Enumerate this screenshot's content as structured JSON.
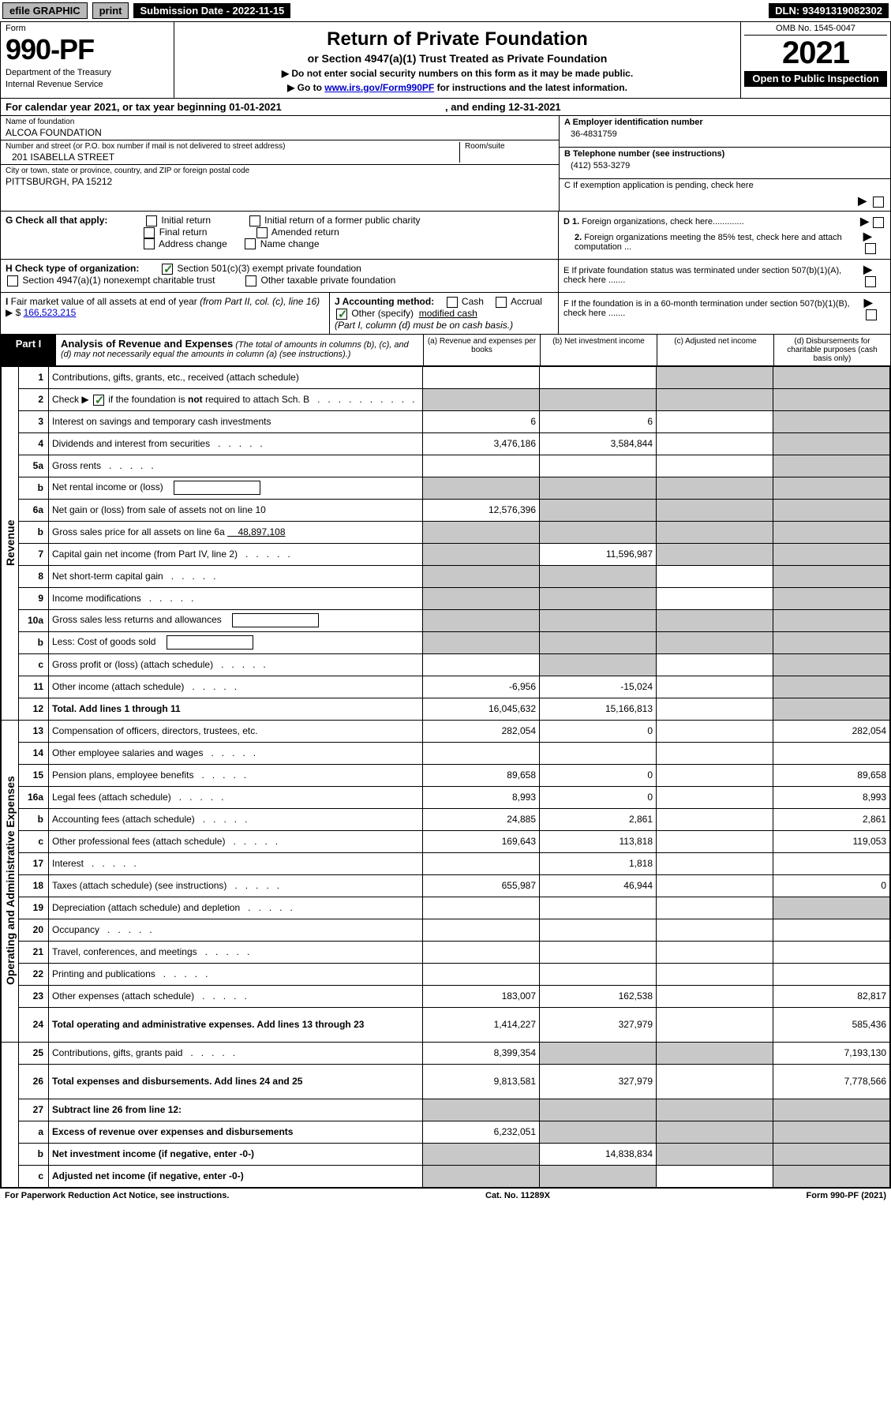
{
  "top_bar": {
    "efile": "efile",
    "graphic": "GRAPHIC",
    "print": "print",
    "sub_date_label": "Submission Date - 2022-11-15",
    "dln": "DLN: 93491319082302"
  },
  "header": {
    "form_label": "Form",
    "form_number": "990-PF",
    "dept": "Department of the Treasury",
    "irs": "Internal Revenue Service",
    "title": "Return of Private Foundation",
    "subtitle": "or Section 4947(a)(1) Trust Treated as Private Foundation",
    "bullet1": "▶ Do not enter social security numbers on this form as it may be made public.",
    "bullet2_pre": "▶ Go to ",
    "bullet2_link": "www.irs.gov/Form990PF",
    "bullet2_post": " for instructions and the latest information.",
    "omb": "OMB No. 1545-0047",
    "year": "2021",
    "open_pub": "Open to Public Inspection"
  },
  "calendar_line": {
    "text_pre": "For calendar year 2021, or tax year beginning ",
    "begin": "01-01-2021",
    "text_mid": " , and ending ",
    "end": "12-31-2021"
  },
  "entity": {
    "name_label": "Name of foundation",
    "name": "ALCOA FOUNDATION",
    "addr_label": "Number and street (or P.O. box number if mail is not delivered to street address)",
    "addr": "201 ISABELLA STREET",
    "room_label": "Room/suite",
    "room": "",
    "city_label": "City or town, state or province, country, and ZIP or foreign postal code",
    "city": "PITTSBURGH, PA  15212",
    "a_label": "A Employer identification number",
    "a_val": "36-4831759",
    "b_label": "B Telephone number (see instructions)",
    "b_val": "(412) 553-3279",
    "c_label": "C If exemption application is pending, check here"
  },
  "checks": {
    "g_label": "G Check all that apply:",
    "g_opts": {
      "initial": "Initial return",
      "initial_former": "Initial return of a former public charity",
      "final": "Final return",
      "amended": "Amended return",
      "addr_change": "Address change",
      "name_change": "Name change"
    },
    "h_label": "H Check type of organization:",
    "h_501c3": "Section 501(c)(3) exempt private foundation",
    "h_4947": "Section 4947(a)(1) nonexempt charitable trust",
    "h_other": "Other taxable private foundation",
    "i_label": "I Fair market value of all assets at end of year (from Part II, col. (c), line 16) ▶ $",
    "i_val": "166,523,215",
    "j_label": "J Accounting method:",
    "j_cash": "Cash",
    "j_accrual": "Accrual",
    "j_other_pre": "Other (specify)",
    "j_other_val": "modified cash",
    "j_note": "(Part I, column (d) must be on cash basis.)",
    "d1": "D 1. Foreign organizations, check here.............",
    "d2": "2. Foreign organizations meeting the 85% test, check here and attach computation ...",
    "e": "E  If private foundation status was terminated under section 507(b)(1)(A), check here .......",
    "f": "F  If the foundation is in a 60-month termination under section 507(b)(1)(B), check here ......."
  },
  "part1": {
    "tab": "Part I",
    "title": "Analysis of Revenue and Expenses",
    "title_note": " (The total of amounts in columns (b), (c), and (d) may not necessarily equal the amounts in column (a) (see instructions).)",
    "col_a": "(a) Revenue and expenses per books",
    "col_b": "(b) Net investment income",
    "col_c": "(c) Adjusted net income",
    "col_d": "(d) Disbursements for charitable purposes (cash basis only)"
  },
  "side_labels": {
    "revenue": "Revenue",
    "operating": "Operating and Administrative Expenses"
  },
  "rows": [
    {
      "n": "1",
      "d": "Contributions, gifts, grants, etc., received (attach schedule)",
      "a": "",
      "b": "",
      "c": "g",
      "dd": "g"
    },
    {
      "n": "2",
      "d": "Check ▶ ☑ if the foundation is not required to attach Sch. B",
      "a": "g",
      "b": "g",
      "c": "g",
      "dd": "g",
      "desc_html": true
    },
    {
      "n": "3",
      "d": "Interest on savings and temporary cash investments",
      "a": "6",
      "b": "6",
      "c": "",
      "dd": "g"
    },
    {
      "n": "4",
      "d": "Dividends and interest from securities",
      "a": "3,476,186",
      "b": "3,584,844",
      "c": "",
      "dd": "g"
    },
    {
      "n": "5a",
      "d": "Gross rents",
      "a": "",
      "b": "",
      "c": "",
      "dd": "g"
    },
    {
      "n": "b",
      "d": "Net rental income or (loss)",
      "a": "g",
      "b": "g",
      "c": "g",
      "dd": "g",
      "inline_box": true
    },
    {
      "n": "6a",
      "d": "Net gain or (loss) from sale of assets not on line 10",
      "a": "12,576,396",
      "b": "g",
      "c": "g",
      "dd": "g"
    },
    {
      "n": "b",
      "d": "Gross sales price for all assets on line 6a",
      "a": "g",
      "b": "g",
      "c": "g",
      "dd": "g",
      "inline_val": "48,897,108"
    },
    {
      "n": "7",
      "d": "Capital gain net income (from Part IV, line 2)",
      "a": "g",
      "b": "11,596,987",
      "c": "g",
      "dd": "g"
    },
    {
      "n": "8",
      "d": "Net short-term capital gain",
      "a": "g",
      "b": "g",
      "c": "",
      "dd": "g"
    },
    {
      "n": "9",
      "d": "Income modifications",
      "a": "g",
      "b": "g",
      "c": "",
      "dd": "g"
    },
    {
      "n": "10a",
      "d": "Gross sales less returns and allowances",
      "a": "g",
      "b": "g",
      "c": "g",
      "dd": "g",
      "inline_box": true
    },
    {
      "n": "b",
      "d": "Less: Cost of goods sold",
      "a": "g",
      "b": "g",
      "c": "g",
      "dd": "g",
      "inline_box": true
    },
    {
      "n": "c",
      "d": "Gross profit or (loss) (attach schedule)",
      "a": "",
      "b": "g",
      "c": "",
      "dd": "g"
    },
    {
      "n": "11",
      "d": "Other income (attach schedule)",
      "a": "-6,956",
      "b": "-15,024",
      "c": "",
      "dd": "g"
    },
    {
      "n": "12",
      "d": "Total. Add lines 1 through 11",
      "a": "16,045,632",
      "b": "15,166,813",
      "c": "",
      "dd": "g",
      "bold": true
    },
    {
      "n": "13",
      "d": "Compensation of officers, directors, trustees, etc.",
      "a": "282,054",
      "b": "0",
      "c": "",
      "dd": "282,054"
    },
    {
      "n": "14",
      "d": "Other employee salaries and wages",
      "a": "",
      "b": "",
      "c": "",
      "dd": ""
    },
    {
      "n": "15",
      "d": "Pension plans, employee benefits",
      "a": "89,658",
      "b": "0",
      "c": "",
      "dd": "89,658"
    },
    {
      "n": "16a",
      "d": "Legal fees (attach schedule)",
      "a": "8,993",
      "b": "0",
      "c": "",
      "dd": "8,993"
    },
    {
      "n": "b",
      "d": "Accounting fees (attach schedule)",
      "a": "24,885",
      "b": "2,861",
      "c": "",
      "dd": "2,861"
    },
    {
      "n": "c",
      "d": "Other professional fees (attach schedule)",
      "a": "169,643",
      "b": "113,818",
      "c": "",
      "dd": "119,053"
    },
    {
      "n": "17",
      "d": "Interest",
      "a": "",
      "b": "1,818",
      "c": "",
      "dd": ""
    },
    {
      "n": "18",
      "d": "Taxes (attach schedule) (see instructions)",
      "a": "655,987",
      "b": "46,944",
      "c": "",
      "dd": "0"
    },
    {
      "n": "19",
      "d": "Depreciation (attach schedule) and depletion",
      "a": "",
      "b": "",
      "c": "",
      "dd": "g"
    },
    {
      "n": "20",
      "d": "Occupancy",
      "a": "",
      "b": "",
      "c": "",
      "dd": ""
    },
    {
      "n": "21",
      "d": "Travel, conferences, and meetings",
      "a": "",
      "b": "",
      "c": "",
      "dd": ""
    },
    {
      "n": "22",
      "d": "Printing and publications",
      "a": "",
      "b": "",
      "c": "",
      "dd": ""
    },
    {
      "n": "23",
      "d": "Other expenses (attach schedule)",
      "a": "183,007",
      "b": "162,538",
      "c": "",
      "dd": "82,817"
    },
    {
      "n": "24",
      "d": "Total operating and administrative expenses. Add lines 13 through 23",
      "a": "1,414,227",
      "b": "327,979",
      "c": "",
      "dd": "585,436",
      "bold": true,
      "tall": true
    },
    {
      "n": "25",
      "d": "Contributions, gifts, grants paid",
      "a": "8,399,354",
      "b": "g",
      "c": "g",
      "dd": "7,193,130"
    },
    {
      "n": "26",
      "d": "Total expenses and disbursements. Add lines 24 and 25",
      "a": "9,813,581",
      "b": "327,979",
      "c": "",
      "dd": "7,778,566",
      "bold": true,
      "tall": true
    },
    {
      "n": "27",
      "d": "Subtract line 26 from line 12:",
      "a": "g",
      "b": "g",
      "c": "g",
      "dd": "g",
      "bold": true
    },
    {
      "n": "a",
      "d": "Excess of revenue over expenses and disbursements",
      "a": "6,232,051",
      "b": "g",
      "c": "g",
      "dd": "g",
      "bold": true
    },
    {
      "n": "b",
      "d": "Net investment income (if negative, enter -0-)",
      "a": "g",
      "b": "14,838,834",
      "c": "g",
      "dd": "g",
      "bold": true
    },
    {
      "n": "c",
      "d": "Adjusted net income (if negative, enter -0-)",
      "a": "g",
      "b": "g",
      "c": "",
      "dd": "g",
      "bold": true
    }
  ],
  "footer": {
    "left": "For Paperwork Reduction Act Notice, see instructions.",
    "mid": "Cat. No. 11289X",
    "right": "Form 990-PF (2021)"
  },
  "colors": {
    "grey_cell": "#c8c8c8",
    "link": "#0000cc",
    "check_green": "#2a7a2a"
  }
}
